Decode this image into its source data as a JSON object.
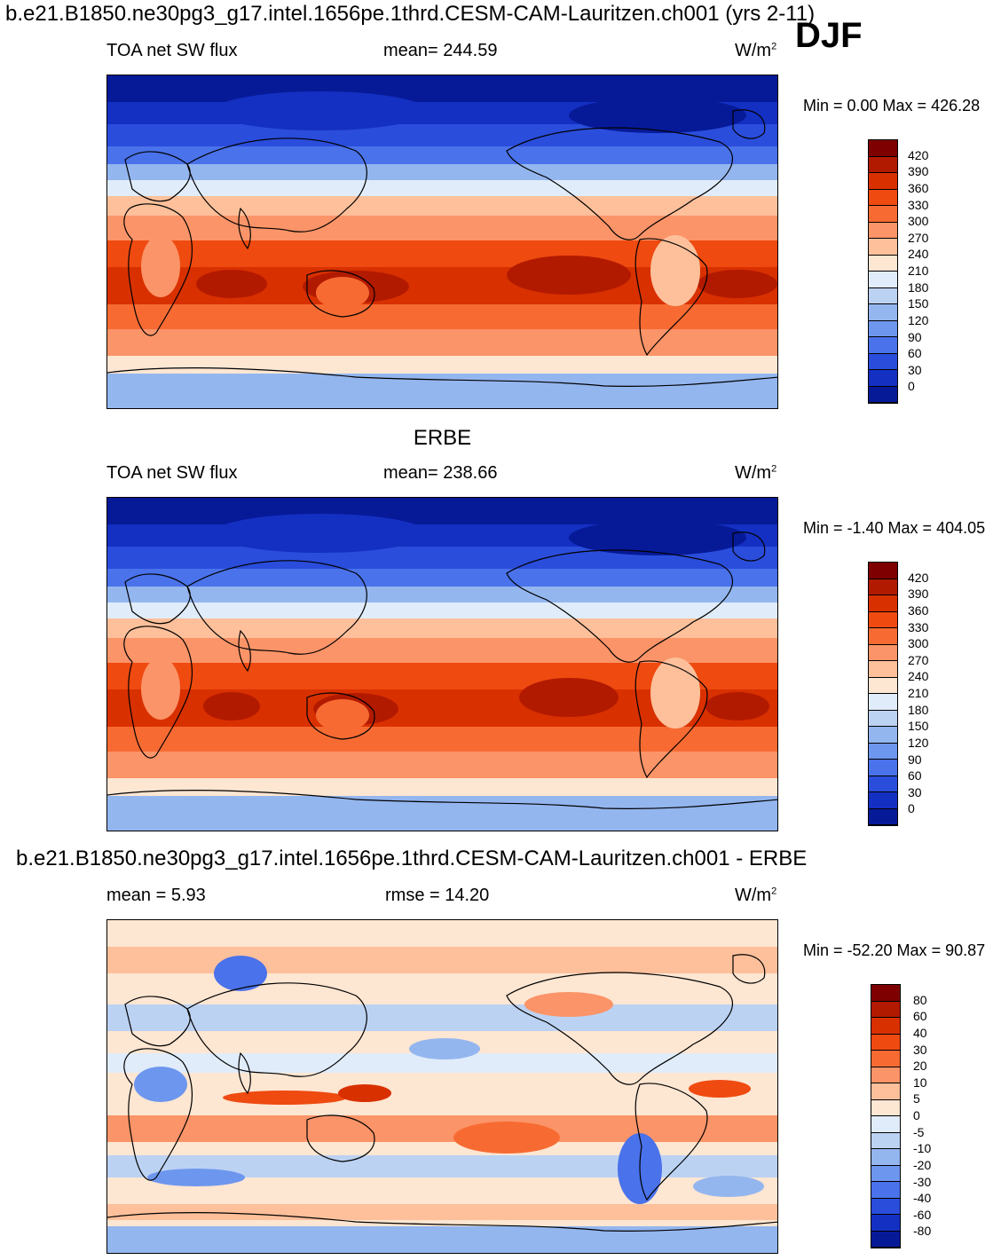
{
  "header": {
    "title": "b.e21.B1850.ne30pg3_g17.intel.1656pe.1thrd.CESM-CAM-Lauritzen.ch001 (yrs 2-11)",
    "season": "DJF"
  },
  "panels": [
    {
      "id": "model",
      "center_title": "",
      "left_label": "TOA net SW flux",
      "mid_label": "mean= 244.59",
      "units": "W/m",
      "units_sup": "2",
      "minmax": "Min =    0.00 Max = 426.28",
      "palette": "abs",
      "colorbar_labels": [
        "420",
        "390",
        "360",
        "330",
        "300",
        "270",
        "240",
        "210",
        "180",
        "150",
        "120",
        "90",
        "60",
        "30",
        "0"
      ]
    },
    {
      "id": "obs",
      "center_title": "ERBE",
      "left_label": "TOA net SW flux",
      "mid_label": "mean= 238.66",
      "units": "W/m",
      "units_sup": "2",
      "minmax": "Min =  -1.40 Max = 404.05",
      "palette": "abs",
      "colorbar_labels": [
        "420",
        "390",
        "360",
        "330",
        "300",
        "270",
        "240",
        "210",
        "180",
        "150",
        "120",
        "90",
        "60",
        "30",
        "0"
      ]
    },
    {
      "id": "diff",
      "center_title": "b.e21.B1850.ne30pg3_g17.intel.1656pe.1thrd.CESM-CAM-Lauritzen.ch001 - ERBE",
      "left_label": "mean =    5.93",
      "mid_label": "rmse =  14.20",
      "units": "W/m",
      "units_sup": "2",
      "minmax": "Min = -52.20 Max =  90.87",
      "palette": "diff",
      "colorbar_labels": [
        "80",
        "60",
        "40",
        "30",
        "20",
        "10",
        "5",
        "0",
        "-5",
        "-10",
        "-20",
        "-30",
        "-40",
        "-60",
        "-80"
      ]
    }
  ],
  "colors": {
    "abs_palette": [
      "#7f0000",
      "#b21a00",
      "#d93000",
      "#ef4a10",
      "#f76b33",
      "#fb9468",
      "#fdc09b",
      "#fde6d2",
      "#e0ecfa",
      "#bcd2f3",
      "#94b6ef",
      "#6d96ee",
      "#4a72ea",
      "#2a4ddc",
      "#1430c2",
      "#061a98"
    ],
    "diff_palette": [
      "#7f0000",
      "#b21a00",
      "#d93000",
      "#ef4a10",
      "#f76b33",
      "#fb9468",
      "#fdc09b",
      "#fde6d2",
      "#e0ecfa",
      "#bcd2f3",
      "#94b6ef",
      "#6d96ee",
      "#4a72ea",
      "#2a4ddc",
      "#1430c2",
      "#061a98"
    ]
  }
}
